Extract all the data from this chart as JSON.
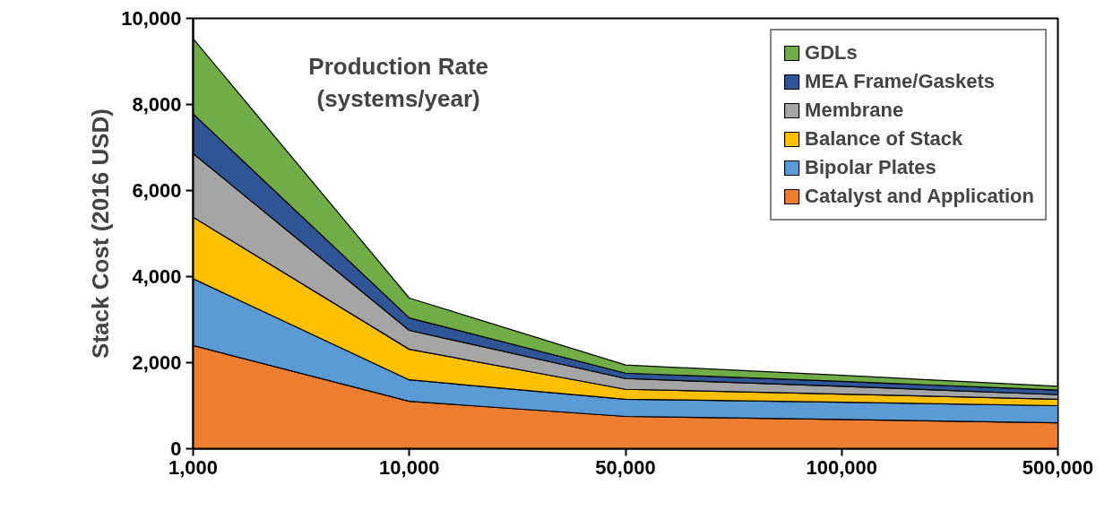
{
  "chart_data": {
    "type": "area",
    "stacked": true,
    "xlabel": "Production Rate\n(systems/year)",
    "ylabel": "Stack Cost (2016 USD)",
    "categories": [
      "1,000",
      "10,000",
      "50,000",
      "100,000",
      "500,000"
    ],
    "ylim": [
      0,
      10000
    ],
    "yticks": [
      {
        "value": 0,
        "label": "0"
      },
      {
        "value": 2000,
        "label": "2,000"
      },
      {
        "value": 4000,
        "label": "4,000"
      },
      {
        "value": 6000,
        "label": "6,000"
      },
      {
        "value": 8000,
        "label": "8,000"
      },
      {
        "value": 10000,
        "label": "10,000"
      }
    ],
    "grid": false,
    "legend": "top right",
    "series": [
      {
        "name": "Catalyst and Application",
        "color": "#ed7d31",
        "values": [
          2400,
          1100,
          750,
          680,
          600
        ]
      },
      {
        "name": "Bipolar Plates",
        "color": "#5b9bd5",
        "values": [
          1550,
          500,
          400,
          400,
          400
        ]
      },
      {
        "name": "Balance of Stack",
        "color": "#ffc000",
        "values": [
          1430,
          710,
          230,
          190,
          150
        ]
      },
      {
        "name": "Membrane",
        "color": "#a5a5a5",
        "values": [
          1480,
          440,
          250,
          180,
          105
        ]
      },
      {
        "name": "MEA Frame/Gaskets",
        "color": "#2f5597",
        "values": [
          920,
          290,
          125,
          115,
          105
        ]
      },
      {
        "name": "GDLs",
        "color": "#70ad47",
        "values": [
          1750,
          460,
          190,
          140,
          90
        ]
      }
    ]
  }
}
